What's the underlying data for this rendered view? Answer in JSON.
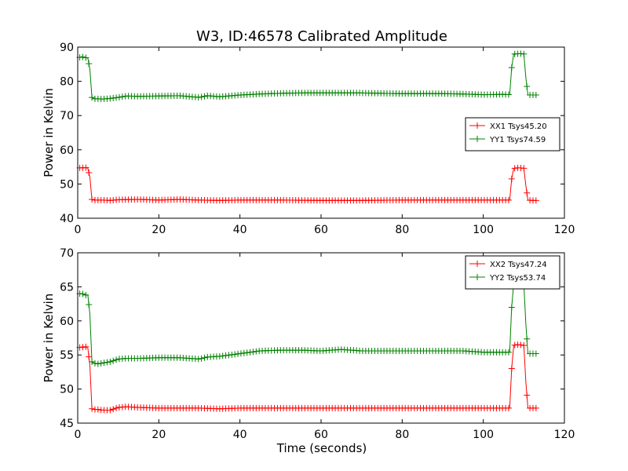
{
  "chart_data": [
    {
      "type": "line",
      "title": "W3, ID:46578 Calibrated Amplitude",
      "xlabel": "",
      "ylabel": "Power in Kelvin",
      "xlim": [
        0,
        120
      ],
      "ylim": [
        40,
        90
      ],
      "xticks": [
        "0",
        "20",
        "40",
        "60",
        "80",
        "100",
        "120"
      ],
      "yticks": [
        "40",
        "50",
        "60",
        "70",
        "80",
        "90"
      ],
      "grid": false,
      "legend_position": "center-right",
      "series": [
        {
          "name": "XX1 Tsys45.20",
          "color": "#ff0000",
          "x": [
            0.5,
            1,
            1.5,
            2,
            2.5,
            3,
            3.5,
            4,
            5,
            6,
            8,
            10,
            15,
            20,
            25,
            30,
            35,
            40,
            50,
            60,
            70,
            80,
            90,
            100,
            105,
            106.5,
            107,
            107.5,
            108,
            109,
            110,
            110.5,
            111,
            112,
            113
          ],
          "y": [
            54.7,
            54.8,
            54.7,
            54.8,
            54.6,
            52,
            45.5,
            45.3,
            45.3,
            45.3,
            45.2,
            45.4,
            45.5,
            45.3,
            45.5,
            45.3,
            45.2,
            45.3,
            45.3,
            45.2,
            45.2,
            45.3,
            45.3,
            45.3,
            45.3,
            45.3,
            51.5,
            54.5,
            54.7,
            54.7,
            54.6,
            49.5,
            45.3,
            45.2,
            45.2
          ]
        },
        {
          "name": "YY1 Tsys74.59",
          "color": "#008000",
          "x": [
            0.5,
            1,
            1.5,
            2,
            2.5,
            3,
            3.5,
            4,
            5,
            6,
            8,
            10,
            12,
            15,
            20,
            25,
            30,
            32,
            35,
            40,
            45,
            50,
            55,
            60,
            70,
            80,
            90,
            95,
            100,
            105,
            106.5,
            107,
            107.5,
            108,
            109,
            110,
            110.5,
            111,
            112,
            113
          ],
          "y": [
            87,
            87.2,
            87,
            86.9,
            86.8,
            83.5,
            75.3,
            74.9,
            74.9,
            74.8,
            75,
            75.3,
            75.7,
            75.6,
            75.7,
            75.8,
            75.3,
            75.8,
            75.5,
            76,
            76.3,
            76.5,
            76.6,
            76.6,
            76.6,
            76.4,
            76.4,
            76.3,
            76.1,
            76.2,
            76.1,
            84,
            88,
            88,
            88.1,
            88,
            81,
            76,
            76,
            76
          ]
        }
      ]
    },
    {
      "type": "line",
      "title": "",
      "xlabel": "Time (seconds)",
      "ylabel": "Power in Kelvin",
      "xlim": [
        0,
        120
      ],
      "ylim": [
        45,
        70
      ],
      "xticks": [
        "0",
        "20",
        "40",
        "60",
        "80",
        "100",
        "120"
      ],
      "yticks": [
        "45",
        "50",
        "55",
        "60",
        "65",
        "70"
      ],
      "grid": false,
      "legend_position": "top-right",
      "series": [
        {
          "name": "XX2 Tsys47.24",
          "color": "#ff0000",
          "x": [
            0.5,
            1,
            1.5,
            2,
            2.5,
            3,
            3.5,
            4,
            5,
            6,
            8,
            10,
            12,
            15,
            20,
            25,
            30,
            35,
            40,
            50,
            60,
            70,
            80,
            90,
            100,
            105,
            106.5,
            107,
            107.5,
            108,
            109,
            110,
            110.5,
            111,
            112,
            113
          ],
          "y": [
            56.1,
            56.2,
            56.1,
            56.2,
            56,
            53.5,
            47.1,
            47,
            47,
            46.9,
            46.9,
            47.3,
            47.4,
            47.3,
            47.2,
            47.2,
            47.2,
            47.1,
            47.2,
            47.2,
            47.2,
            47.2,
            47.2,
            47.2,
            47.2,
            47.2,
            47.2,
            53,
            56.4,
            56.5,
            56.5,
            56.4,
            51,
            47.2,
            47.2,
            47.2
          ]
        },
        {
          "name": "YY2 Tsys53.74",
          "color": "#008000",
          "x": [
            0.5,
            1,
            1.5,
            2,
            2.5,
            3,
            3.5,
            4,
            5,
            6,
            8,
            10,
            12,
            15,
            20,
            25,
            30,
            32,
            35,
            40,
            45,
            50,
            55,
            60,
            65,
            70,
            80,
            90,
            95,
            100,
            105,
            106.5,
            107,
            107.5,
            108,
            109,
            110,
            110.5,
            111,
            112,
            113
          ],
          "y": [
            64,
            64,
            63.9,
            63.8,
            63.8,
            61,
            54,
            53.8,
            53.7,
            53.8,
            54,
            54.4,
            54.5,
            54.5,
            54.6,
            54.6,
            54.4,
            54.7,
            54.8,
            55.2,
            55.6,
            55.7,
            55.7,
            55.6,
            55.8,
            55.6,
            55.6,
            55.6,
            55.6,
            55.4,
            55.4,
            55.4,
            62,
            65.5,
            65.5,
            65.5,
            65.4,
            59.5,
            55.2,
            55.2,
            55.2
          ]
        }
      ]
    }
  ]
}
